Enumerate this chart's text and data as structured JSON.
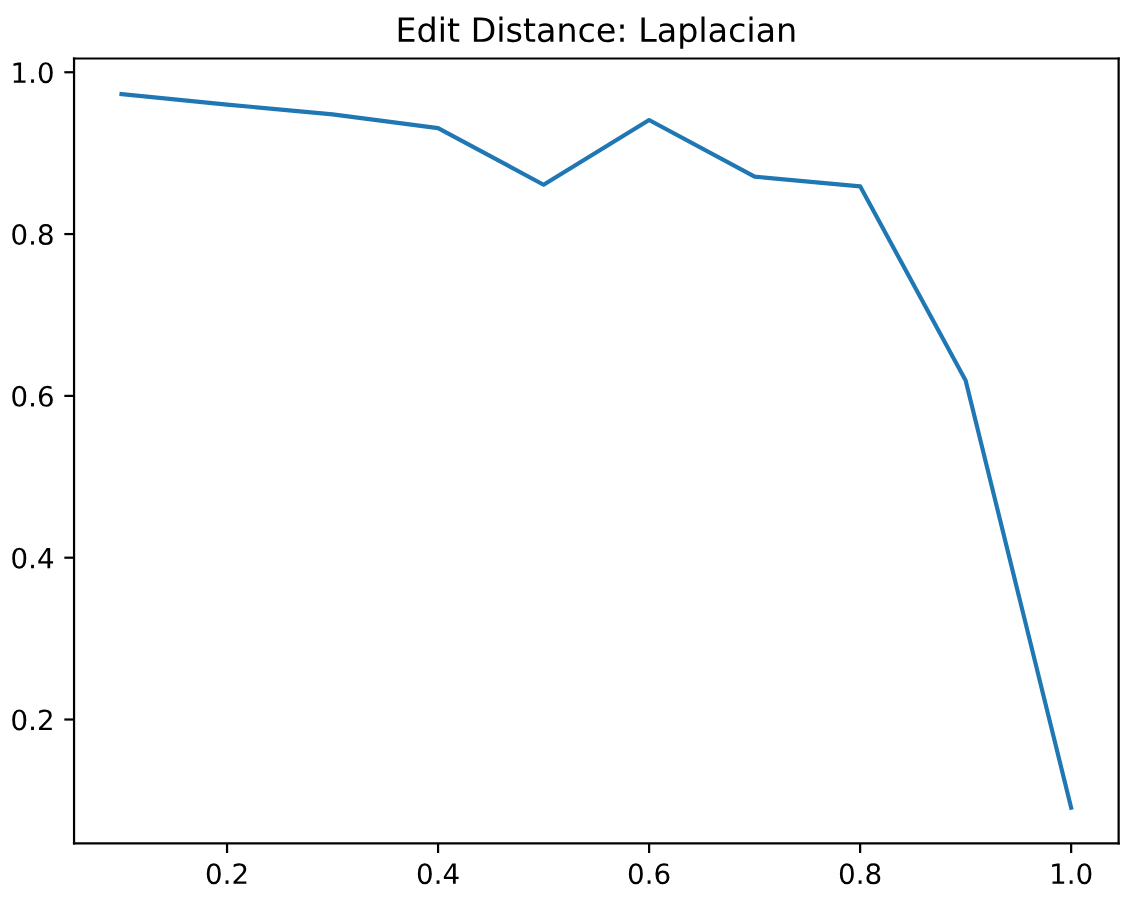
{
  "chart_data": {
    "type": "line",
    "title": "Edit Distance: Laplacian",
    "x": [
      0.1,
      0.2,
      0.3,
      0.4,
      0.5,
      0.6,
      0.7,
      0.8,
      0.9,
      1.0
    ],
    "series": [
      {
        "color": "#1f77b4",
        "values": [
          0.973,
          0.96,
          0.948,
          0.931,
          0.861,
          0.941,
          0.871,
          0.859,
          0.619,
          0.091
        ]
      }
    ],
    "xlim": [
      0.055,
      1.045
    ],
    "ylim": [
      0.047,
      1.017
    ],
    "xticks": [
      0.2,
      0.4,
      0.6,
      0.8,
      {
        "value": 1,
        "label": "1.0"
      }
    ],
    "yticks": [
      0.2,
      0.4,
      0.6,
      0.8,
      {
        "value": 1,
        "label": "1.0"
      }
    ],
    "grid": false,
    "legend": false
  }
}
